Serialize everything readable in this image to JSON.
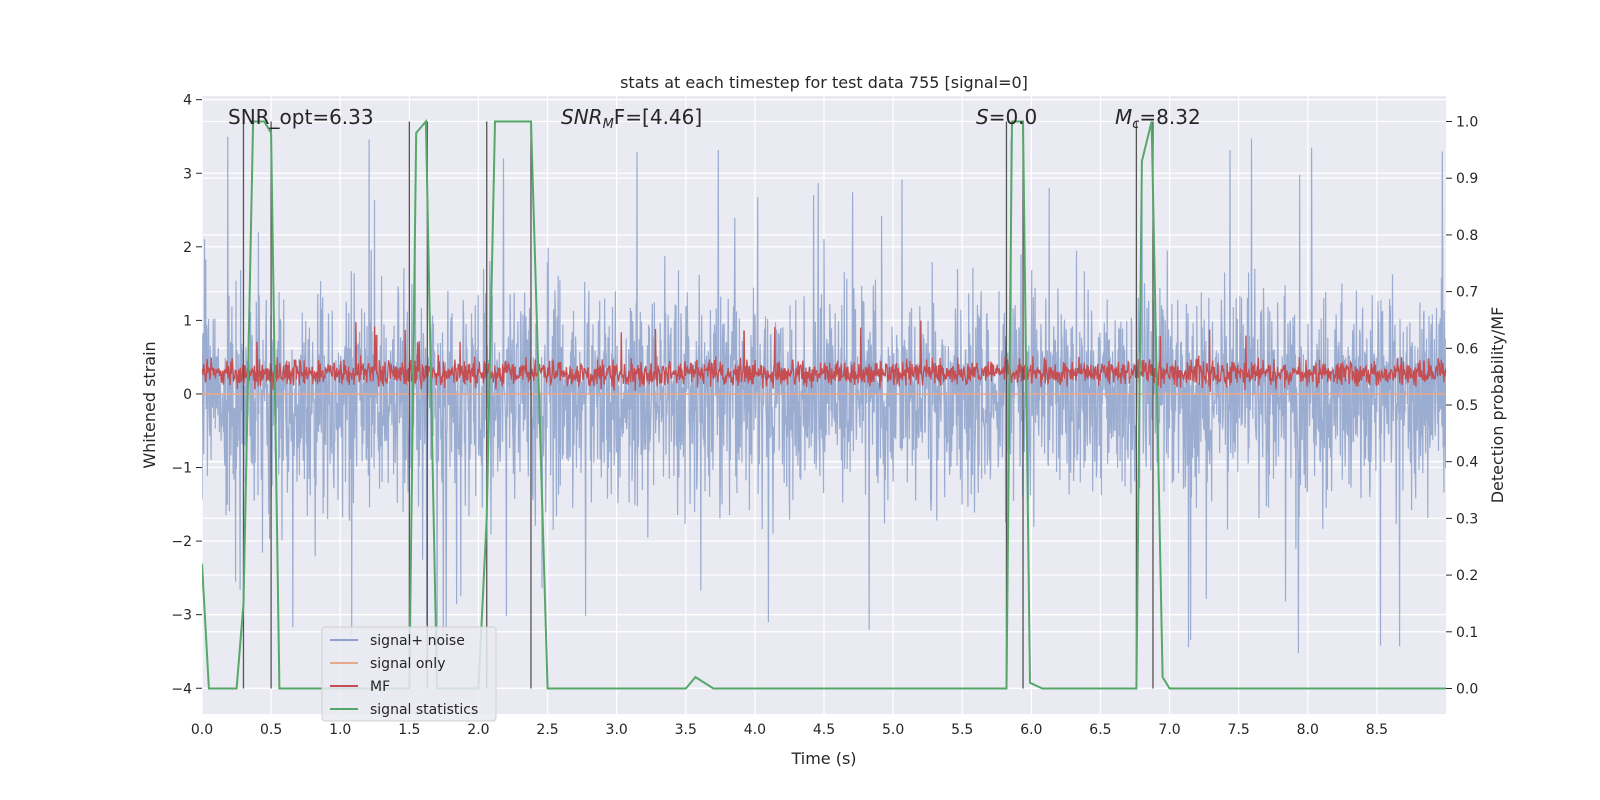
{
  "chart_data": {
    "type": "line",
    "title": "stats at each timestep for test data 755 [signal=0]",
    "xlabel": "Time (s)",
    "ylabel_left": "Whitened strain",
    "ylabel_right": "Detection probability/MF",
    "xlim": [
      0.0,
      9.0
    ],
    "ylim_left": [
      -4.35,
      4.05
    ],
    "ylim_right": [
      -0.045,
      1.045
    ],
    "x_ticks": [
      "0.0",
      "0.5",
      "1.0",
      "1.5",
      "2.0",
      "2.5",
      "3.0",
      "3.5",
      "4.0",
      "4.5",
      "5.0",
      "5.5",
      "6.0",
      "6.5",
      "7.0",
      "7.5",
      "8.0",
      "8.5"
    ],
    "y_left_ticks": [
      "4",
      "3",
      "2",
      "1",
      "0",
      "−1",
      "−2",
      "−3",
      "−4"
    ],
    "y_right_ticks": [
      "1.0",
      "0.9",
      "0.8",
      "0.7",
      "0.6",
      "0.5",
      "0.4",
      "0.3",
      "0.2",
      "0.1",
      "0.0"
    ],
    "grid": true,
    "legend_position": "lower-left",
    "annotations": {
      "snr_opt": "SNR_opt=6.33",
      "snr_mf_main": "SNR",
      "snr_mf_sub": "M",
      "snr_mf_rest": "F=[4.46]",
      "s_main": "S",
      "s_rest": "=0.0",
      "mc_main": "M",
      "mc_sub": "c",
      "mc_rest": "=8.32"
    },
    "series": [
      {
        "name": "signal+ noise",
        "axis": "left",
        "color": "#8da1cb",
        "style": "noise",
        "envelope_typical": [
          -1.9,
          2.2
        ],
        "envelope_extreme": [
          -4.0,
          3.7
        ]
      },
      {
        "name": "signal only",
        "axis": "left",
        "color": "#e8a88a",
        "style": "line",
        "x": [
          0.0,
          9.0
        ],
        "y": [
          0.0,
          0.0
        ]
      },
      {
        "name": "MF",
        "axis": "left",
        "color": "#c44e52",
        "style": "noise",
        "envelope_typical": [
          0.05,
          0.55
        ],
        "envelope_extreme": [
          0.0,
          1.0
        ]
      },
      {
        "name": "signal statistics",
        "axis": "right",
        "color": "#55a868",
        "style": "line",
        "x": [
          0.0,
          0.05,
          0.25,
          0.3,
          0.37,
          0.45,
          0.5,
          0.56,
          1.5,
          1.55,
          1.62,
          1.7,
          2.0,
          2.06,
          2.12,
          2.38,
          2.5,
          3.5,
          3.57,
          3.7,
          5.82,
          5.86,
          5.94,
          5.99,
          6.08,
          6.76,
          6.8,
          6.87,
          6.95,
          7.0,
          9.0
        ],
        "y": [
          0.22,
          0.0,
          0.0,
          0.15,
          1.0,
          1.0,
          0.98,
          0.0,
          0.0,
          0.98,
          1.0,
          0.0,
          0.0,
          0.3,
          1.0,
          1.0,
          0.0,
          0.0,
          0.02,
          0.0,
          0.0,
          1.0,
          1.0,
          0.01,
          0.0,
          0.0,
          0.93,
          1.0,
          0.02,
          0.0,
          0.0
        ]
      }
    ],
    "vertical_lines": {
      "color": "#555555",
      "x": [
        0.3,
        0.5,
        1.5,
        1.63,
        2.06,
        2.38,
        5.82,
        5.94,
        6.76,
        6.88
      ],
      "y_range_right": [
        0.0,
        1.0
      ]
    }
  }
}
